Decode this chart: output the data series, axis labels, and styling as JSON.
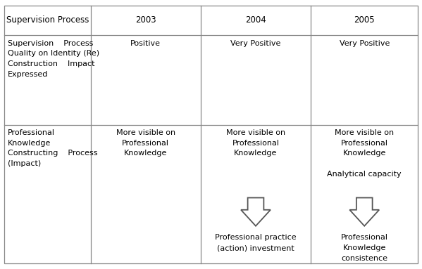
{
  "background_color": "#ffffff",
  "header_row": [
    "Supervision Process",
    "2003",
    "2004",
    "2005"
  ],
  "row1_col0": "Supervision    Process\nQuality on Identity (Re)\nConstruction    Impact\nExpressed",
  "row1_col1": "Positive",
  "row1_col2": "Very Positive",
  "row1_col3": "Very Positive",
  "row2_col0": "Professional\nKnowledge\nConstructing    Process\n(Impact)",
  "row2_col1": "More visible on\nProfessional\nKnowledge",
  "row2_col2": "More visible on\nProfessional\nKnowledge",
  "row2_col3": "More visible on\nProfessional\nKnowledge\n\nAnalytical capacity",
  "row2_col2_extra": "Professional practice\n(action) investment",
  "row2_col3_extra": "Professional\nKnowledge\nconsistence",
  "font_size": 8.0,
  "header_font_size": 8.5,
  "line_color": "#888888",
  "text_color": "#000000",
  "cols": [
    0.0,
    0.215,
    0.475,
    0.737,
    1.0
  ],
  "rows": [
    0.0,
    0.02,
    0.345,
    0.655,
    1.0
  ],
  "lw": 0.9
}
